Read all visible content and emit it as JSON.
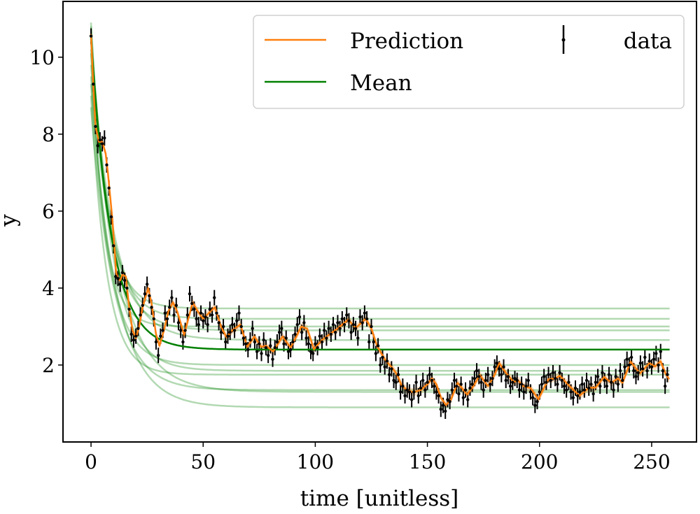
{
  "chart_data": {
    "type": "line",
    "xlabel": "time [unitless]",
    "ylabel": "y",
    "xlim": [
      -12.5,
      270
    ],
    "ylim": [
      0,
      11.45
    ],
    "xticks": [
      0,
      50,
      100,
      150,
      200,
      250
    ],
    "yticks": [
      2,
      4,
      6,
      8,
      10
    ],
    "legend": {
      "placement": "top-right",
      "entries": [
        "Prediction",
        "Mean",
        "data"
      ]
    },
    "colors": {
      "prediction": "#ff7f0e",
      "mean": "#008000",
      "samples": "#008000",
      "data": "#000000"
    },
    "error_bar": 0.2,
    "data": {
      "x_start": 0,
      "x_step": 1,
      "y": [
        10.55,
        9.3,
        8.2,
        7.7,
        7.85,
        7.75,
        7.9,
        7.2,
        6.6,
        5.85,
        5.1,
        4.3,
        4.25,
        4.1,
        4.4,
        4.2,
        4.0,
        3.45,
        2.8,
        2.65,
        2.75,
        2.95,
        3.3,
        3.55,
        3.85,
        4.1,
        3.8,
        3.5,
        3.2,
        2.6,
        2.25,
        2.75,
        2.9,
        3.35,
        3.2,
        3.5,
        3.75,
        3.3,
        3.55,
        3.1,
        2.9,
        2.6,
        2.9,
        3.3,
        3.85,
        3.6,
        3.45,
        3.2,
        3.05,
        3.35,
        3.15,
        3.25,
        3.05,
        3.45,
        3.3,
        3.75,
        3.35,
        3.1,
        2.85,
        3.0,
        2.6,
        2.75,
        2.85,
        3.05,
        2.9,
        3.15,
        3.35,
        3.0,
        2.7,
        2.55,
        2.4,
        2.65,
        2.95,
        2.6,
        2.35,
        2.55,
        2.3,
        2.65,
        2.45,
        2.25,
        2.5,
        2.15,
        2.45,
        2.6,
        2.85,
        2.95,
        2.55,
        2.7,
        2.35,
        2.4,
        2.6,
        2.8,
        3.05,
        3.25,
        2.85,
        3.1,
        2.7,
        2.55,
        2.35,
        2.3,
        2.55,
        2.45,
        2.75,
        2.6,
        2.9,
        2.7,
        2.95,
        2.8,
        3.05,
        2.85,
        3.1,
        2.95,
        3.2,
        3.05,
        3.3,
        3.15,
        2.85,
        3.05,
        2.95,
        2.7,
        3.25,
        3.1,
        3.35,
        3.2,
        2.6,
        3.0,
        2.6,
        2.3,
        2.5,
        2.0,
        2.2,
        1.95,
        2.1,
        1.75,
        1.9,
        1.6,
        1.55,
        1.75,
        1.3,
        1.45,
        1.2,
        1.35,
        1.3,
        1.1,
        1.3,
        1.55,
        1.2,
        1.4,
        1.6,
        1.35,
        1.55,
        1.75,
        1.6,
        1.45,
        1.3,
        1.2,
        0.85,
        0.95,
        0.8,
        1.1,
        1.05,
        1.35,
        1.6,
        1.45,
        1.25,
        1.5,
        1.15,
        1.35,
        1.1,
        1.4,
        1.5,
        1.65,
        1.85,
        1.7,
        1.55,
        1.35,
        1.6,
        1.75,
        1.5,
        1.65,
        1.95,
        2.05,
        1.9,
        1.75,
        1.95,
        1.6,
        1.7,
        1.45,
        1.55,
        1.65,
        1.6,
        1.35,
        1.5,
        1.3,
        1.45,
        1.6,
        1.3,
        1.15,
        0.95,
        1.05,
        1.3,
        1.5,
        1.7,
        1.55,
        1.75,
        1.6,
        1.8,
        1.65,
        1.5,
        1.8,
        1.6,
        1.45,
        1.35,
        1.55,
        1.3,
        1.15,
        1.4,
        1.2,
        1.3,
        1.5,
        1.35,
        1.6,
        1.4,
        1.5,
        1.25,
        1.55,
        1.7,
        1.45,
        1.8,
        1.6,
        1.45,
        1.75,
        1.55,
        1.35,
        1.7,
        1.5,
        1.85,
        1.6,
        1.95,
        2.15,
        2.0,
        2.2,
        1.85,
        1.7,
        1.8,
        2.05,
        1.9,
        2.2,
        1.85,
        2.1,
        1.95,
        2.15,
        2.3,
        2.0,
        2.35,
        1.85,
        1.45,
        1.75
      ]
    },
    "prediction": [
      [
        0,
        10.6
      ],
      [
        1,
        9.3
      ],
      [
        2,
        8.2
      ],
      [
        3.5,
        7.8
      ],
      [
        5,
        7.8
      ],
      [
        6.5,
        7.5
      ],
      [
        7.5,
        7.0
      ],
      [
        8.5,
        6.4
      ],
      [
        9.5,
        5.8
      ],
      [
        10.5,
        5.0
      ],
      [
        11.2,
        4.4
      ],
      [
        12,
        4.25
      ],
      [
        13,
        4.2
      ],
      [
        14,
        4.35
      ],
      [
        15.5,
        4.3
      ],
      [
        17,
        3.5
      ],
      [
        18.5,
        2.9
      ],
      [
        20,
        2.7
      ],
      [
        21.5,
        3.0
      ],
      [
        23,
        3.5
      ],
      [
        25.5,
        4.0
      ],
      [
        27,
        3.6
      ],
      [
        29,
        2.8
      ],
      [
        30.5,
        2.5
      ],
      [
        32.5,
        2.9
      ],
      [
        34.5,
        3.4
      ],
      [
        36.5,
        3.63
      ],
      [
        38.5,
        3.38
      ],
      [
        41.5,
        2.78
      ],
      [
        45.3,
        3.63
      ],
      [
        47.5,
        3.4
      ],
      [
        50,
        3.2
      ],
      [
        52.5,
        3.35
      ],
      [
        55.2,
        3.5
      ],
      [
        58,
        3.0
      ],
      [
        60.4,
        2.72
      ],
      [
        63,
        2.9
      ],
      [
        66.6,
        3.05
      ],
      [
        69.7,
        2.47
      ],
      [
        72.8,
        2.74
      ],
      [
        75.9,
        2.47
      ],
      [
        78,
        2.5
      ],
      [
        81.2,
        2.35
      ],
      [
        85.4,
        2.74
      ],
      [
        89,
        2.45
      ],
      [
        93.8,
        3.0
      ],
      [
        96.4,
        2.94
      ],
      [
        99.4,
        2.41
      ],
      [
        103,
        2.65
      ],
      [
        106,
        2.78
      ],
      [
        110,
        2.95
      ],
      [
        114.7,
        3.18
      ],
      [
        118,
        2.96
      ],
      [
        122.5,
        3.2
      ],
      [
        125,
        2.95
      ],
      [
        127.5,
        2.5
      ],
      [
        129,
        2.35
      ],
      [
        131,
        2.15
      ],
      [
        134.4,
        1.92
      ],
      [
        136.5,
        1.75
      ],
      [
        138.5,
        1.47
      ],
      [
        141,
        1.35
      ],
      [
        143.7,
        1.29
      ],
      [
        147,
        1.35
      ],
      [
        150,
        1.5
      ],
      [
        152,
        1.65
      ],
      [
        154,
        1.5
      ],
      [
        156,
        1.15
      ],
      [
        158.3,
        0.96
      ],
      [
        160.5,
        1.1
      ],
      [
        163.5,
        1.54
      ],
      [
        167.7,
        1.23
      ],
      [
        170.5,
        1.45
      ],
      [
        173.4,
        1.74
      ],
      [
        177,
        1.45
      ],
      [
        180,
        1.75
      ],
      [
        182,
        2.05
      ],
      [
        185,
        1.8
      ],
      [
        188.5,
        1.56
      ],
      [
        190.5,
        1.6
      ],
      [
        192.7,
        1.45
      ],
      [
        196,
        1.4
      ],
      [
        199.5,
        1.11
      ],
      [
        201.5,
        1.35
      ],
      [
        204,
        1.63
      ],
      [
        207,
        1.65
      ],
      [
        209,
        1.72
      ],
      [
        211,
        1.6
      ],
      [
        213.4,
        1.45
      ],
      [
        217.8,
        1.2
      ],
      [
        222,
        1.41
      ],
      [
        225,
        1.41
      ],
      [
        228.8,
        1.69
      ],
      [
        232,
        1.54
      ],
      [
        235,
        1.65
      ],
      [
        237,
        1.54
      ],
      [
        240.6,
        2.09
      ],
      [
        244.8,
        1.78
      ],
      [
        249,
        2.05
      ],
      [
        251.5,
        1.96
      ],
      [
        254,
        2.1
      ],
      [
        256,
        1.8
      ],
      [
        257.8,
        1.63
      ]
    ],
    "mean": {
      "y0": 10.5,
      "asymptote": 2.4,
      "tau": 9,
      "x_end": 258
    },
    "samples": [
      {
        "y0": 10.9,
        "asymptote": 3.47,
        "tau": 7
      },
      {
        "y0": 10.6,
        "asymptote": 3.2,
        "tau": 8
      },
      {
        "y0": 10.2,
        "asymptote": 3.0,
        "tau": 6
      },
      {
        "y0": 9.8,
        "asymptote": 2.9,
        "tau": 9
      },
      {
        "y0": 10.4,
        "asymptote": 2.65,
        "tau": 10
      },
      {
        "y0": 9.5,
        "asymptote": 2.0,
        "tau": 8
      },
      {
        "y0": 10.8,
        "asymptote": 1.85,
        "tau": 9
      },
      {
        "y0": 9.0,
        "asymptote": 1.75,
        "tau": 7
      },
      {
        "y0": 8.7,
        "asymptote": 1.35,
        "tau": 10
      },
      {
        "y0": 10.1,
        "asymptote": 1.3,
        "tau": 12
      },
      {
        "y0": 9.3,
        "asymptote": 0.9,
        "tau": 11
      }
    ]
  }
}
